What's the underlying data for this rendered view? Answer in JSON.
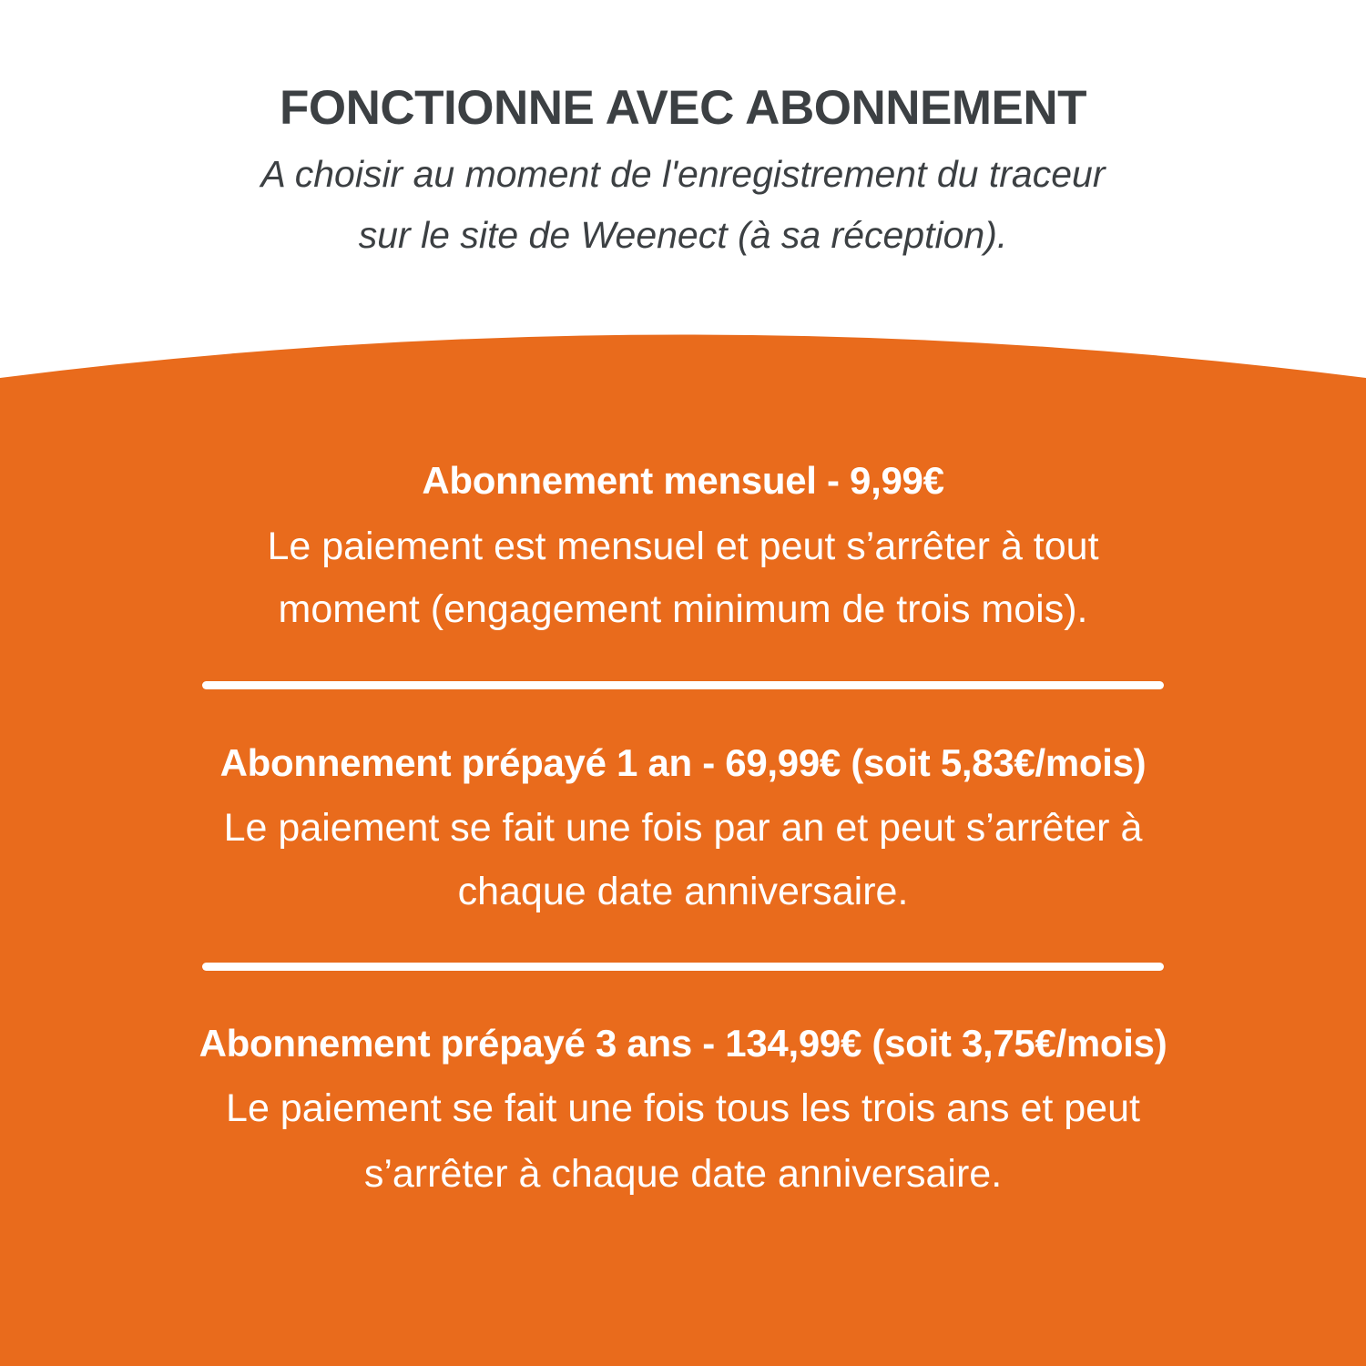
{
  "colors": {
    "accent": "#E96B1C",
    "title": "#3C4043",
    "text_on_accent": "#FFFFFF"
  },
  "header": {
    "title": "FONCTIONNE AVEC ABONNEMENT",
    "subtitle_lines": [
      "A choisir au moment de l'enregistrement du traceur",
      "sur le site de Weenect (à sa réception)."
    ]
  },
  "plans": [
    {
      "heading": "Abonnement mensuel - 9,99€",
      "description_lines": [
        "Le paiement est mensuel et peut s’arrêter à tout",
        "moment (engagement minimum de trois mois)."
      ]
    },
    {
      "heading": "Abonnement prépayé 1 an - 69,99€ (soit 5,83€/mois)",
      "description_lines": [
        "Le paiement se fait une fois par an et peut s’arrêter à",
        "chaque date anniversaire."
      ]
    },
    {
      "heading": "Abonnement prépayé 3 ans - 134,99€ (soit 3,75€/mois)",
      "description_lines": [
        "Le paiement se fait une fois tous les trois ans et peut",
        "s’arrêter à chaque date anniversaire."
      ]
    }
  ]
}
